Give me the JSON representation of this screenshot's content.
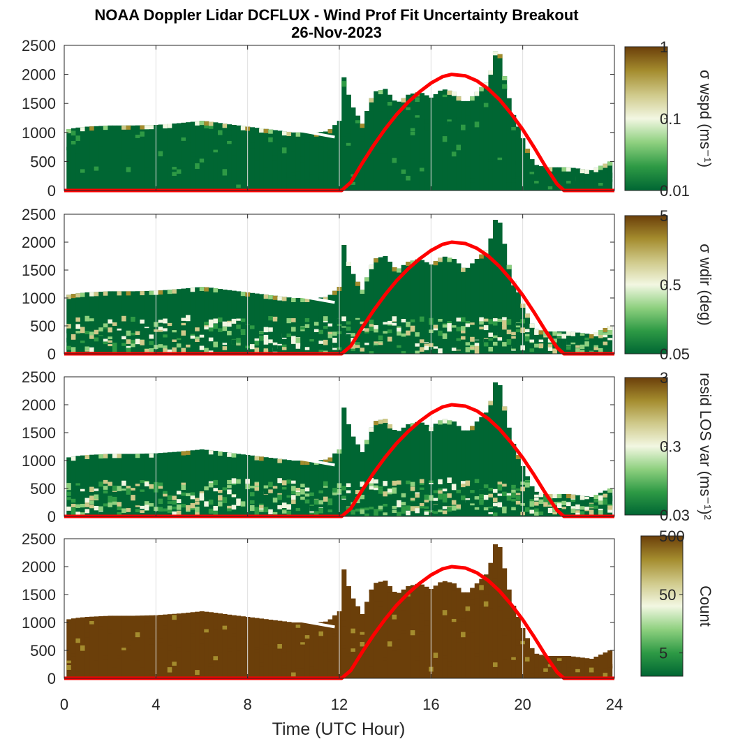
{
  "chart_data": {
    "type": "heatmap",
    "title": "NOAA Doppler Lidar DCFLUX - Wind Prof Fit Uncertainty Breakout",
    "subtitle": "26-Nov-2023",
    "xlabel": "Time (UTC Hour)",
    "xlim": [
      0,
      24
    ],
    "xticks": [
      0,
      4,
      8,
      12,
      16,
      20,
      24
    ],
    "ylim": [
      0,
      2500
    ],
    "yticks": [
      0,
      500,
      1000,
      1500,
      2000,
      2500
    ],
    "grid": "vertical",
    "colormap": [
      "#006633",
      "#2e9a45",
      "#8ed07f",
      "#f2f7e2",
      "#cfc98a",
      "#a48c2e",
      "#6b3f0a"
    ],
    "overlay_color": "#ff0000",
    "overlay_curve": {
      "x": [
        0,
        12.1,
        12.5,
        13,
        13.5,
        14,
        14.5,
        15,
        15.5,
        16,
        16.5,
        16.9,
        17.5,
        18,
        18.5,
        19,
        19.5,
        20,
        20.5,
        21,
        21.5,
        21.8,
        24
      ],
      "y": [
        0,
        0,
        140,
        470,
        780,
        1060,
        1310,
        1520,
        1700,
        1850,
        1960,
        2000,
        1975,
        1890,
        1750,
        1560,
        1320,
        1050,
        740,
        410,
        110,
        0,
        0
      ]
    },
    "data_top_envelope": {
      "x": [
        0.1,
        0.5,
        1,
        2,
        3,
        4,
        5,
        6,
        6.5,
        7,
        8,
        9,
        10,
        11,
        11.5,
        12,
        12.2,
        12.5,
        13,
        13.5,
        14,
        14.5,
        15,
        15.5,
        16,
        16.5,
        17,
        17.5,
        18,
        18.5,
        18.8,
        19,
        19.5,
        20,
        20.5,
        21,
        22,
        23,
        23.8
      ],
      "y": [
        1050,
        1080,
        1100,
        1120,
        1120,
        1130,
        1160,
        1200,
        1180,
        1150,
        1100,
        1050,
        1000,
        1000,
        1020,
        1200,
        1950,
        1500,
        1150,
        1700,
        1750,
        1500,
        1650,
        1700,
        1600,
        1750,
        1700,
        1500,
        1700,
        1900,
        2400,
        2350,
        1400,
        900,
        450,
        400,
        400,
        350,
        500
      ]
    },
    "panels": [
      {
        "colorbar_label": "σ wspd (ms⁻¹)",
        "colorbar_scale": "log",
        "colorbar_range": [
          0.01,
          1
        ],
        "colorbar_ticks": [
          "0.01",
          "0.1",
          "1"
        ]
      },
      {
        "colorbar_label": "σ wdir (deg)",
        "colorbar_scale": "log",
        "colorbar_range": [
          0.05,
          5
        ],
        "colorbar_ticks": [
          "0.05",
          "0.5",
          "5"
        ]
      },
      {
        "colorbar_label": "resid LOS var (ms⁻¹)²",
        "colorbar_scale": "log",
        "colorbar_range": [
          0.03,
          3
        ],
        "colorbar_ticks": [
          "0.03",
          "0.3",
          "3"
        ]
      },
      {
        "colorbar_label": "Count",
        "colorbar_scale": "log",
        "colorbar_range": [
          2,
          500
        ],
        "colorbar_ticks": [
          "5",
          "50",
          "500"
        ]
      }
    ]
  }
}
